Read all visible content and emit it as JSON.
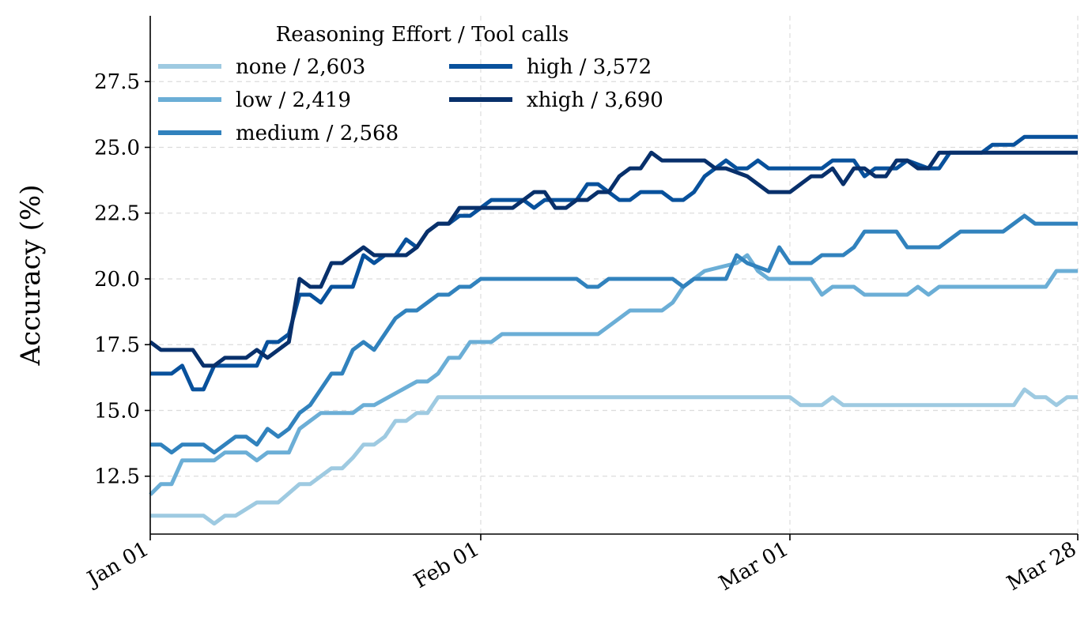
{
  "chart_data": {
    "type": "line",
    "ylabel": "Accuracy (%)",
    "xlabel": "",
    "x_type": "date",
    "x_range": [
      "2024-01-01",
      "2024-03-28"
    ],
    "ylim": [
      10.3,
      30.0
    ],
    "grid": true,
    "legend_position": "top-left",
    "x_ticks": [
      {
        "date": "2024-01-01",
        "label": "Jan 01"
      },
      {
        "date": "2024-02-01",
        "label": "Feb 01"
      },
      {
        "date": "2024-03-01",
        "label": "Mar 01"
      },
      {
        "date": "2024-03-28",
        "label": "Mar 28"
      }
    ],
    "y_ticks": [
      12.5,
      15.0,
      17.5,
      20.0,
      22.5,
      25.0,
      27.5
    ],
    "y_tick_labels": [
      "12.5",
      "15.0",
      "17.5",
      "20.0",
      "22.5",
      "25.0",
      "27.5"
    ],
    "legend_title": "Reasoning Effort / Tool calls",
    "series": [
      {
        "name": "none / 2,603",
        "color": "#9ecae1",
        "points": [
          [
            "2024-01-01",
            11.0
          ],
          [
            "2024-01-06",
            11.0
          ],
          [
            "2024-01-07",
            10.7
          ],
          [
            "2024-01-08",
            11.0
          ],
          [
            "2024-01-09",
            11.0
          ],
          [
            "2024-01-11",
            11.5
          ],
          [
            "2024-01-13",
            11.5
          ],
          [
            "2024-01-15",
            12.2
          ],
          [
            "2024-01-16",
            12.2
          ],
          [
            "2024-01-18",
            12.8
          ],
          [
            "2024-01-19",
            12.8
          ],
          [
            "2024-01-20",
            13.2
          ],
          [
            "2024-01-21",
            13.7
          ],
          [
            "2024-01-22",
            13.7
          ],
          [
            "2024-01-23",
            14.0
          ],
          [
            "2024-01-24",
            14.6
          ],
          [
            "2024-01-25",
            14.6
          ],
          [
            "2024-01-26",
            14.9
          ],
          [
            "2024-01-27",
            14.9
          ],
          [
            "2024-01-28",
            15.5
          ],
          [
            "2024-02-29",
            15.5
          ],
          [
            "2024-03-01",
            15.5
          ],
          [
            "2024-03-02",
            15.2
          ],
          [
            "2024-03-04",
            15.2
          ],
          [
            "2024-03-05",
            15.5
          ],
          [
            "2024-03-06",
            15.2
          ],
          [
            "2024-03-22",
            15.2
          ],
          [
            "2024-03-23",
            15.8
          ],
          [
            "2024-03-24",
            15.5
          ],
          [
            "2024-03-25",
            15.5
          ],
          [
            "2024-03-26",
            15.2
          ],
          [
            "2024-03-27",
            15.5
          ],
          [
            "2024-03-28",
            15.5
          ]
        ]
      },
      {
        "name": "low / 2,419",
        "color": "#6baed6",
        "points": [
          [
            "2024-01-01",
            11.8
          ],
          [
            "2024-01-02",
            12.2
          ],
          [
            "2024-01-03",
            12.2
          ],
          [
            "2024-01-04",
            13.1
          ],
          [
            "2024-01-07",
            13.1
          ],
          [
            "2024-01-08",
            13.4
          ],
          [
            "2024-01-10",
            13.4
          ],
          [
            "2024-01-11",
            13.1
          ],
          [
            "2024-01-12",
            13.4
          ],
          [
            "2024-01-14",
            13.4
          ],
          [
            "2024-01-15",
            14.3
          ],
          [
            "2024-01-16",
            14.6
          ],
          [
            "2024-01-17",
            14.9
          ],
          [
            "2024-01-20",
            14.9
          ],
          [
            "2024-01-21",
            15.2
          ],
          [
            "2024-01-22",
            15.2
          ],
          [
            "2024-01-26",
            16.1
          ],
          [
            "2024-01-27",
            16.1
          ],
          [
            "2024-01-28",
            16.4
          ],
          [
            "2024-01-29",
            17.0
          ],
          [
            "2024-01-30",
            17.0
          ],
          [
            "2024-01-31",
            17.6
          ],
          [
            "2024-02-02",
            17.6
          ],
          [
            "2024-02-03",
            17.9
          ],
          [
            "2024-02-11",
            17.9
          ],
          [
            "2024-02-12",
            17.9
          ],
          [
            "2024-02-15",
            18.8
          ],
          [
            "2024-02-18",
            18.8
          ],
          [
            "2024-02-19",
            19.1
          ],
          [
            "2024-02-20",
            19.7
          ],
          [
            "2024-02-22",
            20.3
          ],
          [
            "2024-02-25",
            20.6
          ],
          [
            "2024-02-26",
            20.9
          ],
          [
            "2024-02-27",
            20.3
          ],
          [
            "2024-02-28",
            20.0
          ],
          [
            "2024-03-03",
            20.0
          ],
          [
            "2024-03-04",
            19.4
          ],
          [
            "2024-03-05",
            19.7
          ],
          [
            "2024-03-07",
            19.7
          ],
          [
            "2024-03-08",
            19.4
          ],
          [
            "2024-03-12",
            19.4
          ],
          [
            "2024-03-13",
            19.7
          ],
          [
            "2024-03-14",
            19.4
          ],
          [
            "2024-03-15",
            19.7
          ],
          [
            "2024-03-25",
            19.7
          ],
          [
            "2024-03-26",
            20.3
          ],
          [
            "2024-03-28",
            20.3
          ]
        ]
      },
      {
        "name": "medium / 2,568",
        "color": "#3182bd",
        "points": [
          [
            "2024-01-01",
            13.7
          ],
          [
            "2024-01-02",
            13.7
          ],
          [
            "2024-01-03",
            13.4
          ],
          [
            "2024-01-04",
            13.7
          ],
          [
            "2024-01-06",
            13.7
          ],
          [
            "2024-01-07",
            13.4
          ],
          [
            "2024-01-09",
            14.0
          ],
          [
            "2024-01-10",
            14.0
          ],
          [
            "2024-01-11",
            13.7
          ],
          [
            "2024-01-12",
            14.3
          ],
          [
            "2024-01-13",
            14.0
          ],
          [
            "2024-01-14",
            14.3
          ],
          [
            "2024-01-15",
            14.9
          ],
          [
            "2024-01-16",
            15.2
          ],
          [
            "2024-01-17",
            15.8
          ],
          [
            "2024-01-18",
            16.4
          ],
          [
            "2024-01-19",
            16.4
          ],
          [
            "2024-01-20",
            17.3
          ],
          [
            "2024-01-21",
            17.6
          ],
          [
            "2024-01-22",
            17.3
          ],
          [
            "2024-01-23",
            17.9
          ],
          [
            "2024-01-24",
            18.5
          ],
          [
            "2024-01-25",
            18.8
          ],
          [
            "2024-01-26",
            18.8
          ],
          [
            "2024-01-28",
            19.4
          ],
          [
            "2024-01-29",
            19.4
          ],
          [
            "2024-01-30",
            19.7
          ],
          [
            "2024-01-31",
            19.7
          ],
          [
            "2024-02-01",
            20.0
          ],
          [
            "2024-02-10",
            20.0
          ],
          [
            "2024-02-11",
            19.7
          ],
          [
            "2024-02-12",
            19.7
          ],
          [
            "2024-02-13",
            20.0
          ],
          [
            "2024-02-19",
            20.0
          ],
          [
            "2024-02-20",
            19.7
          ],
          [
            "2024-02-21",
            20.0
          ],
          [
            "2024-02-24",
            20.0
          ],
          [
            "2024-02-25",
            20.9
          ],
          [
            "2024-02-26",
            20.6
          ],
          [
            "2024-02-28",
            20.3
          ],
          [
            "2024-02-29",
            21.2
          ],
          [
            "2024-03-01",
            20.6
          ],
          [
            "2024-03-03",
            20.6
          ],
          [
            "2024-03-04",
            20.9
          ],
          [
            "2024-03-06",
            20.9
          ],
          [
            "2024-03-07",
            21.2
          ],
          [
            "2024-03-08",
            21.8
          ],
          [
            "2024-03-11",
            21.8
          ],
          [
            "2024-03-12",
            21.2
          ],
          [
            "2024-03-15",
            21.2
          ],
          [
            "2024-03-17",
            21.8
          ],
          [
            "2024-03-21",
            21.8
          ],
          [
            "2024-03-23",
            22.4
          ],
          [
            "2024-03-24",
            22.1
          ],
          [
            "2024-03-28",
            22.1
          ]
        ]
      },
      {
        "name": "high / 3,572",
        "color": "#08519c",
        "points": [
          [
            "2024-01-01",
            16.4
          ],
          [
            "2024-01-03",
            16.4
          ],
          [
            "2024-01-04",
            16.7
          ],
          [
            "2024-01-05",
            15.8
          ],
          [
            "2024-01-06",
            15.8
          ],
          [
            "2024-01-07",
            16.7
          ],
          [
            "2024-01-11",
            16.7
          ],
          [
            "2024-01-12",
            17.6
          ],
          [
            "2024-01-13",
            17.6
          ],
          [
            "2024-01-14",
            17.9
          ],
          [
            "2024-01-15",
            19.4
          ],
          [
            "2024-01-16",
            19.4
          ],
          [
            "2024-01-17",
            19.1
          ],
          [
            "2024-01-18",
            19.7
          ],
          [
            "2024-01-20",
            19.7
          ],
          [
            "2024-01-21",
            20.9
          ],
          [
            "2024-01-22",
            20.6
          ],
          [
            "2024-01-23",
            20.9
          ],
          [
            "2024-01-24",
            20.9
          ],
          [
            "2024-01-25",
            21.5
          ],
          [
            "2024-01-26",
            21.2
          ],
          [
            "2024-01-27",
            21.8
          ],
          [
            "2024-01-28",
            22.1
          ],
          [
            "2024-01-29",
            22.1
          ],
          [
            "2024-01-30",
            22.4
          ],
          [
            "2024-01-31",
            22.4
          ],
          [
            "2024-02-01",
            22.7
          ],
          [
            "2024-02-02",
            23.0
          ],
          [
            "2024-02-05",
            23.0
          ],
          [
            "2024-02-06",
            22.7
          ],
          [
            "2024-02-07",
            23.0
          ],
          [
            "2024-02-10",
            23.0
          ],
          [
            "2024-02-11",
            23.6
          ],
          [
            "2024-02-12",
            23.6
          ],
          [
            "2024-02-13",
            23.3
          ],
          [
            "2024-02-14",
            23.0
          ],
          [
            "2024-02-15",
            23.0
          ],
          [
            "2024-02-16",
            23.3
          ],
          [
            "2024-02-18",
            23.3
          ],
          [
            "2024-02-19",
            23.0
          ],
          [
            "2024-02-20",
            23.0
          ],
          [
            "2024-02-21",
            23.3
          ],
          [
            "2024-02-22",
            23.9
          ],
          [
            "2024-02-23",
            24.2
          ],
          [
            "2024-02-24",
            24.5
          ],
          [
            "2024-02-25",
            24.2
          ],
          [
            "2024-02-26",
            24.2
          ],
          [
            "2024-02-27",
            24.5
          ],
          [
            "2024-02-28",
            24.2
          ],
          [
            "2024-02-29",
            24.2
          ],
          [
            "2024-03-01",
            24.2
          ],
          [
            "2024-03-02",
            24.2
          ],
          [
            "2024-03-04",
            24.2
          ],
          [
            "2024-03-05",
            24.5
          ],
          [
            "2024-03-07",
            24.5
          ],
          [
            "2024-03-08",
            23.9
          ],
          [
            "2024-03-09",
            24.2
          ],
          [
            "2024-03-11",
            24.2
          ],
          [
            "2024-03-12",
            24.5
          ],
          [
            "2024-03-14",
            24.2
          ],
          [
            "2024-03-15",
            24.2
          ],
          [
            "2024-03-16",
            24.8
          ],
          [
            "2024-03-19",
            24.8
          ],
          [
            "2024-03-20",
            25.1
          ],
          [
            "2024-03-22",
            25.1
          ],
          [
            "2024-03-23",
            25.4
          ],
          [
            "2024-03-28",
            25.4
          ]
        ]
      },
      {
        "name": "xhigh / 3,690",
        "color": "#08306b",
        "points": [
          [
            "2024-01-01",
            17.6
          ],
          [
            "2024-01-02",
            17.3
          ],
          [
            "2024-01-05",
            17.3
          ],
          [
            "2024-01-06",
            16.7
          ],
          [
            "2024-01-07",
            16.7
          ],
          [
            "2024-01-08",
            17.0
          ],
          [
            "2024-01-10",
            17.0
          ],
          [
            "2024-01-11",
            17.3
          ],
          [
            "2024-01-12",
            17.0
          ],
          [
            "2024-01-14",
            17.6
          ],
          [
            "2024-01-15",
            20.0
          ],
          [
            "2024-01-16",
            19.7
          ],
          [
            "2024-01-17",
            19.7
          ],
          [
            "2024-01-18",
            20.6
          ],
          [
            "2024-01-19",
            20.6
          ],
          [
            "2024-01-20",
            20.9
          ],
          [
            "2024-01-21",
            21.2
          ],
          [
            "2024-01-22",
            20.9
          ],
          [
            "2024-01-25",
            20.9
          ],
          [
            "2024-01-26",
            21.2
          ],
          [
            "2024-01-27",
            21.8
          ],
          [
            "2024-01-28",
            22.1
          ],
          [
            "2024-01-29",
            22.1
          ],
          [
            "2024-01-30",
            22.7
          ],
          [
            "2024-02-04",
            22.7
          ],
          [
            "2024-02-05",
            23.0
          ],
          [
            "2024-02-06",
            23.3
          ],
          [
            "2024-02-07",
            23.3
          ],
          [
            "2024-02-08",
            22.7
          ],
          [
            "2024-02-09",
            22.7
          ],
          [
            "2024-02-10",
            23.0
          ],
          [
            "2024-02-11",
            23.0
          ],
          [
            "2024-02-12",
            23.3
          ],
          [
            "2024-02-13",
            23.3
          ],
          [
            "2024-02-14",
            23.9
          ],
          [
            "2024-02-15",
            24.2
          ],
          [
            "2024-02-16",
            24.2
          ],
          [
            "2024-02-17",
            24.8
          ],
          [
            "2024-02-18",
            24.5
          ],
          [
            "2024-02-22",
            24.5
          ],
          [
            "2024-02-23",
            24.2
          ],
          [
            "2024-02-24",
            24.2
          ],
          [
            "2024-02-26",
            23.9
          ],
          [
            "2024-02-27",
            23.6
          ],
          [
            "2024-02-28",
            23.3
          ],
          [
            "2024-03-01",
            23.3
          ],
          [
            "2024-03-02",
            23.6
          ],
          [
            "2024-03-03",
            23.9
          ],
          [
            "2024-03-04",
            23.9
          ],
          [
            "2024-03-05",
            24.2
          ],
          [
            "2024-03-06",
            23.6
          ],
          [
            "2024-03-07",
            24.2
          ],
          [
            "2024-03-08",
            24.2
          ],
          [
            "2024-03-09",
            23.9
          ],
          [
            "2024-03-10",
            23.9
          ],
          [
            "2024-03-11",
            24.5
          ],
          [
            "2024-03-12",
            24.5
          ],
          [
            "2024-03-13",
            24.2
          ],
          [
            "2024-03-14",
            24.2
          ],
          [
            "2024-03-15",
            24.8
          ],
          [
            "2024-03-28",
            24.8
          ]
        ]
      }
    ]
  }
}
